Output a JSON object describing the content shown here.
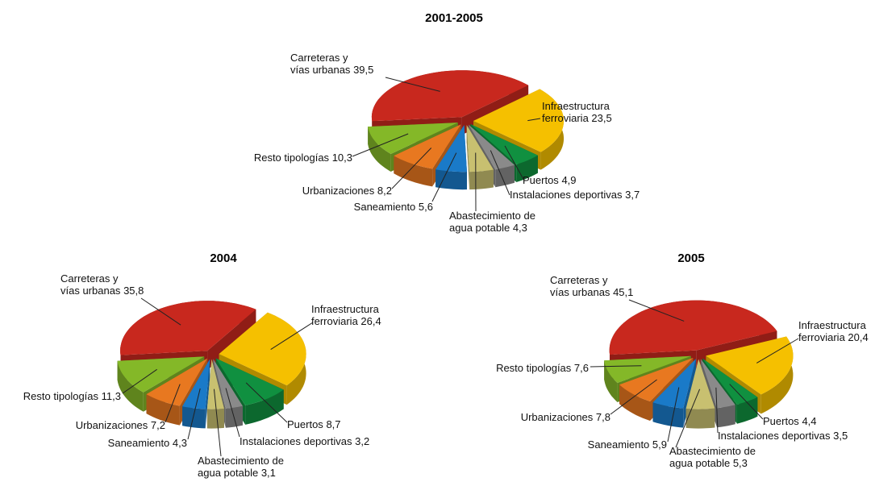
{
  "chart_data": [
    {
      "type": "pie",
      "title": "2001-2005",
      "categories": [
        "Carreteras y\nvías urbanas",
        "Infraestructura\nferroviaria",
        "Puertos",
        "Instalaciones deportivas",
        "Abastecimiento de\nagua potable",
        "Saneamiento",
        "Urbanizaciones",
        "Resto tipologías"
      ],
      "values": [
        39.5,
        23.5,
        4.9,
        3.7,
        4.3,
        5.6,
        8.2,
        10.3
      ],
      "value_labels": [
        "39,5",
        "23,5",
        "4,9",
        "3,7",
        "4,3",
        "5,6",
        "8,2",
        "10,3"
      ],
      "colors": [
        "#c8281e",
        "#f5c000",
        "#109040",
        "#8a8a8a",
        "#c8c070",
        "#1a7ac8",
        "#e87820",
        "#84b828"
      ]
    },
    {
      "type": "pie",
      "title": "2004",
      "categories": [
        "Carreteras y\nvías urbanas",
        "Infraestructura\nferroviaria",
        "Puertos",
        "Instalaciones deportivas",
        "Abastecimiento de\nagua potable",
        "Saneamiento",
        "Urbanizaciones",
        "Resto tipologías"
      ],
      "values": [
        35.8,
        26.4,
        8.7,
        3.2,
        3.1,
        4.3,
        7.2,
        11.3
      ],
      "value_labels": [
        "35,8",
        "26,4",
        "8,7",
        "3,2",
        "3,1",
        "4,3",
        "7,2",
        "11,3"
      ],
      "colors": [
        "#c8281e",
        "#f5c000",
        "#109040",
        "#8a8a8a",
        "#c8c070",
        "#1a7ac8",
        "#e87820",
        "#84b828"
      ]
    },
    {
      "type": "pie",
      "title": "2005",
      "categories": [
        "Carreteras y\nvías urbanas",
        "Infraestructura\nferroviaria",
        "Puertos",
        "Instalaciones deportivas",
        "Abastecimiento de\nagua potable",
        "Saneamiento",
        "Urbanizaciones",
        "Resto tipologías"
      ],
      "values": [
        45.1,
        20.4,
        4.4,
        3.5,
        5.3,
        5.9,
        7.8,
        7.6
      ],
      "value_labels": [
        "45,1",
        "20,4",
        "4,4",
        "3,5",
        "5,3",
        "5,9",
        "7,8",
        "7,6"
      ],
      "colors": [
        "#c8281e",
        "#f5c000",
        "#109040",
        "#8a8a8a",
        "#c8c070",
        "#1a7ac8",
        "#e87820",
        "#84b828"
      ]
    }
  ]
}
